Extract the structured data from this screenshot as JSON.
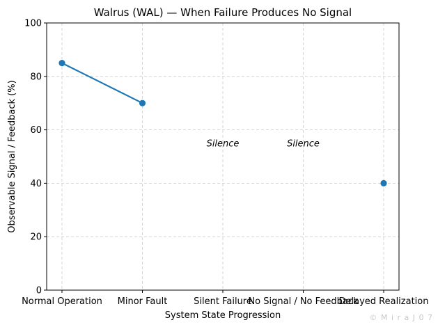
{
  "chart_data": {
    "type": "line",
    "title": "Walrus (WAL) — When Failure Produces No Signal",
    "xlabel": "System State Progression",
    "ylabel": "Observable Signal / Feedback (%)",
    "categories": [
      "Normal Operation",
      "Minor Fault",
      "Silent Failure",
      "No Signal / No Feedback",
      "Delayed Realization"
    ],
    "series": [
      {
        "name": "Observable Signal",
        "values": [
          85,
          70,
          null,
          null,
          40
        ],
        "color": "#1f77b4"
      }
    ],
    "ylim": [
      0,
      100
    ],
    "yticks": [
      0,
      20,
      40,
      60,
      80,
      100
    ],
    "grid": true,
    "annotations": [
      {
        "category": "Silent Failure",
        "y": 55,
        "text": "Silence"
      },
      {
        "category": "No Signal / No Feedback",
        "y": 55,
        "text": "Silence"
      }
    ]
  },
  "watermark": "© M i r a J 0 7"
}
